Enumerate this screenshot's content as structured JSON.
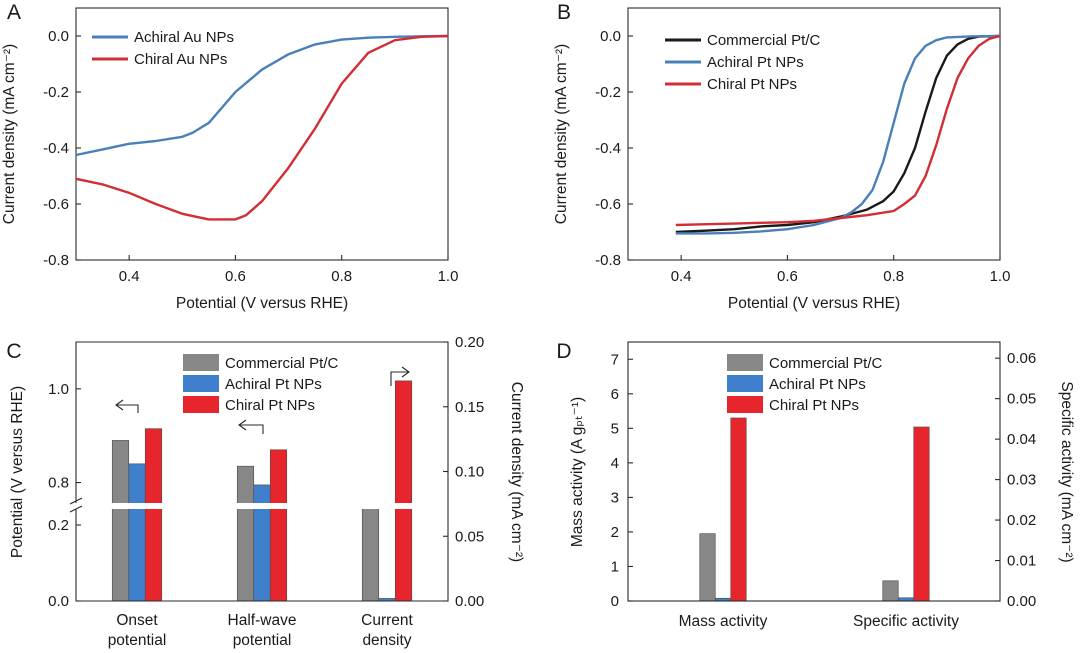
{
  "figure": {
    "panels": [
      {
        "label": "A",
        "xlabel": "Potential (V versus RHE)",
        "ylabel": "Current density (mA cm⁻²)",
        "xticks": [
          "0.4",
          "0.6",
          "0.8",
          "1.0"
        ],
        "yticks": [
          "0.0",
          "-0.2",
          "-0.4",
          "-0.6",
          "-0.8"
        ]
      },
      {
        "label": "B",
        "xlabel": "Potential (V versus RHE)",
        "ylabel": "Current density (mA cm⁻²)",
        "xticks": [
          "0.4",
          "0.6",
          "0.8",
          "1.0"
        ],
        "yticks": [
          "0.0",
          "-0.2",
          "-0.4",
          "-0.6",
          "-0.8"
        ]
      },
      {
        "label": "C",
        "ylabel_left": "Potential (V versus RHE)",
        "ylabel_right": "Current density (mA cm⁻²)",
        "yticks_left_upper": [
          "1.0",
          "0.8"
        ],
        "yticks_left_lower": [
          "0.2",
          "0.0"
        ],
        "yticks_right": [
          "0.20",
          "0.15",
          "0.10",
          "0.05",
          "0.00"
        ],
        "groups": [
          "Onset\npotential",
          "Half-wave\npotential",
          "Current\ndensity"
        ]
      },
      {
        "label": "D",
        "ylabel_left": "Mass activity (A gₚₜ⁻¹)",
        "ylabel_right": "Specific activity (mA cm⁻²)",
        "yticks_left": [
          "0",
          "1",
          "2",
          "3",
          "4",
          "5",
          "6",
          "7"
        ],
        "yticks_right": [
          "0.00",
          "0.01",
          "0.02",
          "0.03",
          "0.04",
          "0.05",
          "0.06"
        ],
        "groups": [
          "Mass activity",
          "Specific activity"
        ]
      }
    ]
  },
  "chart_data": [
    {
      "type": "line",
      "panel": "A",
      "xlabel": "Potential (V versus RHE)",
      "ylabel": "Current density (mA cm⁻²)",
      "xlim": [
        0.3,
        1.0
      ],
      "ylim": [
        -0.8,
        0.1
      ],
      "grid": false,
      "legend_position": "top-left",
      "series": [
        {
          "name": "Achiral Au NPs",
          "color": "#4a80b8",
          "x": [
            0.3,
            0.35,
            0.4,
            0.45,
            0.5,
            0.52,
            0.55,
            0.6,
            0.65,
            0.7,
            0.75,
            0.8,
            0.85,
            0.9,
            0.95,
            1.0
          ],
          "y": [
            -0.425,
            -0.405,
            -0.385,
            -0.375,
            -0.36,
            -0.345,
            -0.31,
            -0.2,
            -0.12,
            -0.065,
            -0.03,
            -0.013,
            -0.006,
            -0.003,
            -0.001,
            0.0
          ]
        },
        {
          "name": "Chiral Au NPs",
          "color": "#d12e35",
          "x": [
            0.3,
            0.35,
            0.4,
            0.45,
            0.5,
            0.55,
            0.6,
            0.62,
            0.65,
            0.7,
            0.75,
            0.8,
            0.85,
            0.9,
            0.95,
            1.0
          ],
          "y": [
            -0.51,
            -0.53,
            -0.56,
            -0.6,
            -0.635,
            -0.655,
            -0.655,
            -0.64,
            -0.59,
            -0.47,
            -0.33,
            -0.17,
            -0.06,
            -0.015,
            -0.003,
            0.0
          ]
        }
      ]
    },
    {
      "type": "line",
      "panel": "B",
      "xlabel": "Potential (V versus RHE)",
      "ylabel": "Current density (mA cm⁻²)",
      "xlim": [
        0.3,
        1.0
      ],
      "ylim": [
        -0.8,
        0.1
      ],
      "grid": false,
      "legend_position": "top-left",
      "series": [
        {
          "name": "Commercial Pt/C",
          "color": "#1a1a1a",
          "x": [
            0.39,
            0.45,
            0.5,
            0.55,
            0.6,
            0.65,
            0.7,
            0.75,
            0.78,
            0.8,
            0.82,
            0.84,
            0.86,
            0.88,
            0.9,
            0.92,
            0.94,
            0.96,
            1.0
          ],
          "y": [
            -0.7,
            -0.695,
            -0.69,
            -0.68,
            -0.675,
            -0.665,
            -0.645,
            -0.62,
            -0.59,
            -0.555,
            -0.49,
            -0.4,
            -0.27,
            -0.15,
            -0.07,
            -0.03,
            -0.01,
            -0.002,
            0.0
          ]
        },
        {
          "name": "Achiral Pt NPs",
          "color": "#4a80b8",
          "x": [
            0.39,
            0.45,
            0.5,
            0.55,
            0.6,
            0.65,
            0.7,
            0.72,
            0.74,
            0.76,
            0.78,
            0.8,
            0.82,
            0.84,
            0.86,
            0.88,
            0.9,
            0.95,
            1.0
          ],
          "y": [
            -0.705,
            -0.705,
            -0.703,
            -0.698,
            -0.69,
            -0.675,
            -0.65,
            -0.63,
            -0.6,
            -0.55,
            -0.45,
            -0.31,
            -0.17,
            -0.08,
            -0.035,
            -0.015,
            -0.005,
            -0.001,
            0.0
          ]
        },
        {
          "name": "Chiral Pt NPs",
          "color": "#d12e35",
          "x": [
            0.39,
            0.45,
            0.5,
            0.55,
            0.6,
            0.65,
            0.7,
            0.75,
            0.8,
            0.82,
            0.84,
            0.86,
            0.88,
            0.9,
            0.92,
            0.94,
            0.96,
            0.98,
            1.0
          ],
          "y": [
            -0.675,
            -0.672,
            -0.67,
            -0.667,
            -0.665,
            -0.66,
            -0.65,
            -0.64,
            -0.625,
            -0.6,
            -0.57,
            -0.5,
            -0.39,
            -0.26,
            -0.15,
            -0.08,
            -0.035,
            -0.01,
            0.0
          ]
        }
      ]
    },
    {
      "type": "bar",
      "panel": "C",
      "categories": [
        "Onset potential",
        "Half-wave potential",
        "Current density"
      ],
      "ylabel_left": "Potential (V versus RHE)",
      "ylabel_right": "Current density (mA cm⁻²)",
      "left_axis_break": [
        0.25,
        0.75
      ],
      "ylim_left_lower": [
        0.0,
        0.25
      ],
      "ylim_left_upper": [
        0.75,
        1.1
      ],
      "ylim_right": [
        0.0,
        0.2
      ],
      "legend_position": "top-center",
      "series": [
        {
          "name": "Commercial Pt/C",
          "color": "#878787",
          "values": [
            0.89,
            0.835,
            0.075
          ],
          "axes": [
            "left",
            "left",
            "right"
          ]
        },
        {
          "name": "Achiral Pt NPs",
          "color": "#3f7fcc",
          "values": [
            0.84,
            0.795,
            0.002
          ],
          "axes": [
            "left",
            "left",
            "right"
          ]
        },
        {
          "name": "Chiral Pt NPs",
          "color": "#e6262c",
          "values": [
            0.915,
            0.87,
            0.17
          ],
          "axes": [
            "left",
            "left",
            "right"
          ]
        }
      ]
    },
    {
      "type": "bar",
      "panel": "D",
      "categories": [
        "Mass activity",
        "Specific activity"
      ],
      "ylabel_left": "Mass activity (A gₚₜ⁻¹)",
      "ylabel_right": "Specific activity (mA cm⁻²)",
      "ylim_left": [
        0,
        7.5
      ],
      "ylim_right": [
        0.0,
        0.064
      ],
      "legend_position": "top-center",
      "series": [
        {
          "name": "Commercial Pt/C",
          "color": "#878787",
          "values": [
            1.95,
            0.005
          ],
          "axes": [
            "left",
            "right"
          ]
        },
        {
          "name": "Achiral Pt NPs",
          "color": "#3f7fcc",
          "values": [
            0.08,
            0.0008
          ],
          "axes": [
            "left",
            "right"
          ]
        },
        {
          "name": "Chiral Pt NPs",
          "color": "#e6262c",
          "values": [
            5.3,
            0.043
          ],
          "axes": [
            "left",
            "right"
          ]
        }
      ]
    }
  ]
}
